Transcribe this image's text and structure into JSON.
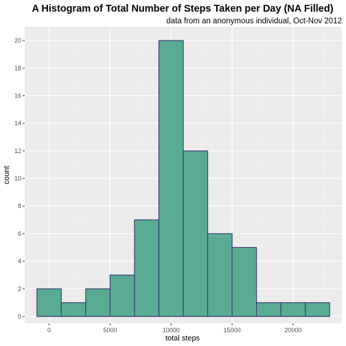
{
  "chart_data": {
    "type": "bar",
    "title": "A Histogram of Total Number of Steps Taken per Day (NA Filled)",
    "subtitle": "data from an anonymous individual, Oct-Nov 2012",
    "xlabel": "total steps",
    "ylabel": "count",
    "bins": [
      {
        "x0": -1000,
        "x1": 1000,
        "count": 2
      },
      {
        "x0": 1000,
        "x1": 3000,
        "count": 1
      },
      {
        "x0": 3000,
        "x1": 5000,
        "count": 2
      },
      {
        "x0": 5000,
        "x1": 7000,
        "count": 3
      },
      {
        "x0": 7000,
        "x1": 9000,
        "count": 7
      },
      {
        "x0": 9000,
        "x1": 11000,
        "count": 20
      },
      {
        "x0": 11000,
        "x1": 13000,
        "count": 12
      },
      {
        "x0": 13000,
        "x1": 15000,
        "count": 6
      },
      {
        "x0": 15000,
        "x1": 17000,
        "count": 5
      },
      {
        "x0": 17000,
        "x1": 19000,
        "count": 1
      },
      {
        "x0": 19000,
        "x1": 21000,
        "count": 1
      },
      {
        "x0": 21000,
        "x1": 23000,
        "count": 1
      }
    ],
    "xlim": [
      -2000,
      24000
    ],
    "ylim": [
      -0.5,
      21
    ],
    "x_ticks": [
      0,
      5000,
      10000,
      15000,
      20000
    ],
    "y_ticks": [
      0,
      2,
      4,
      6,
      8,
      10,
      12,
      14,
      16,
      18,
      20
    ],
    "grid": true,
    "colors": {
      "bar_fill": "#5aab93",
      "bar_stroke": "#3b3f77",
      "panel_background": "#ebebeb",
      "grid_major": "#ffffff"
    }
  }
}
